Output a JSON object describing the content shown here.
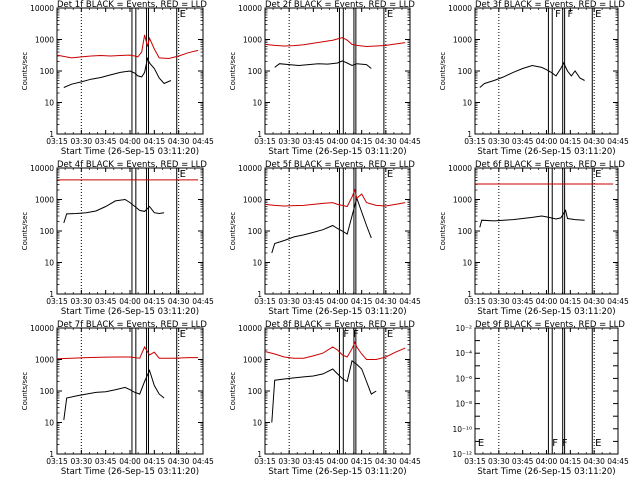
{
  "chart_data": [
    {
      "type": "line",
      "title": "Det 1f BLACK = Events, RED = LLD",
      "xlabel": "Start Time (26-Sep-15 03:11:20)",
      "ylabel": "Counts/sec",
      "x_tick_labels": [
        "03:15",
        "03:30",
        "03:45",
        "04:00",
        "04:15",
        "04:30",
        "04:45"
      ],
      "xlim": [
        3.25,
        4.75
      ],
      "ylim": [
        1,
        10000
      ],
      "y_scale": "log",
      "y_tick_labels": [
        "1",
        "10",
        "100",
        "1000",
        "10000"
      ],
      "dotted_vlines": [
        3.5,
        4.5
      ],
      "solid_vlines": [
        4.02,
        4.06,
        4.17,
        4.19,
        4.48
      ],
      "flag_letters": [
        {
          "x": 4.5,
          "text": "E"
        }
      ],
      "series": [
        {
          "color": "#000000",
          "x": [
            3.32,
            3.4,
            3.5,
            3.6,
            3.7,
            3.8,
            3.9,
            4.0,
            4.05,
            4.08,
            4.12,
            4.15,
            4.18,
            4.2,
            4.25,
            4.3,
            4.35,
            4.42
          ],
          "y": [
            30,
            38,
            45,
            55,
            62,
            75,
            90,
            100,
            85,
            70,
            65,
            90,
            250,
            180,
            120,
            60,
            40,
            50
          ]
        },
        {
          "color": "#cc0000",
          "x": [
            3.25,
            3.4,
            3.5,
            3.6,
            3.7,
            3.8,
            3.9,
            4.0,
            4.05,
            4.08,
            4.12,
            4.15,
            4.18,
            4.2,
            4.25,
            4.3,
            4.4,
            4.5,
            4.6,
            4.7
          ],
          "y": [
            320,
            260,
            280,
            300,
            310,
            300,
            310,
            320,
            300,
            280,
            400,
            1400,
            600,
            1100,
            500,
            260,
            250,
            300,
            380,
            450
          ]
        }
      ]
    },
    {
      "type": "line",
      "title": "Det 2f BLACK = Events, RED = LLD",
      "xlabel": "Start Time (26-Sep-15 03:11:20)",
      "ylabel": "Counts/sec",
      "x_tick_labels": [
        "03:15",
        "03:30",
        "03:45",
        "04:00",
        "04:15",
        "04:30",
        "04:45"
      ],
      "xlim": [
        3.25,
        4.75
      ],
      "ylim": [
        1,
        10000
      ],
      "y_scale": "log",
      "y_tick_labels": [
        "1",
        "10",
        "100",
        "1000",
        "10000"
      ],
      "dotted_vlines": [
        3.5,
        4.5
      ],
      "solid_vlines": [
        4.02,
        4.06,
        4.17,
        4.19,
        4.48
      ],
      "flag_letters": [
        {
          "x": 4.5,
          "text": "E"
        }
      ],
      "series": [
        {
          "color": "#000000",
          "x": [
            3.35,
            3.4,
            3.5,
            3.6,
            3.7,
            3.8,
            3.9,
            4.0,
            4.05,
            4.1,
            4.15,
            4.2,
            4.3,
            4.35
          ],
          "y": [
            130,
            170,
            160,
            150,
            160,
            170,
            165,
            180,
            210,
            180,
            150,
            170,
            160,
            120
          ]
        },
        {
          "color": "#cc0000",
          "x": [
            3.25,
            3.35,
            3.45,
            3.55,
            3.65,
            3.75,
            3.85,
            3.95,
            4.05,
            4.1,
            4.15,
            4.2,
            4.3,
            4.4,
            4.5,
            4.6,
            4.7
          ],
          "y": [
            700,
            650,
            620,
            640,
            680,
            760,
            850,
            950,
            1150,
            950,
            700,
            650,
            600,
            620,
            650,
            720,
            800
          ]
        }
      ]
    },
    {
      "type": "line",
      "title": "Det 3f BLACK = Events, RED = LLD",
      "xlabel": "Start Time (26-Sep-15 03:11:20)",
      "ylabel": "Counts/sec",
      "x_tick_labels": [
        "03:15",
        "03:30",
        "03:45",
        "04:00",
        "04:15",
        "04:30",
        "04:45"
      ],
      "xlim": [
        3.25,
        4.75
      ],
      "ylim": [
        1,
        10000
      ],
      "y_scale": "log",
      "y_tick_labels": [
        "1",
        "10",
        "100",
        "1000",
        "10000"
      ],
      "dotted_vlines": [
        3.5,
        4.5
      ],
      "solid_vlines": [
        4.02,
        4.06,
        4.17,
        4.19,
        4.48
      ],
      "flag_letters": [
        {
          "x": 4.08,
          "text": "F"
        },
        {
          "x": 4.21,
          "text": "F"
        },
        {
          "x": 4.5,
          "text": "E"
        }
      ],
      "series": [
        {
          "color": "#000000",
          "x": [
            3.3,
            3.35,
            3.45,
            3.55,
            3.65,
            3.75,
            3.85,
            3.95,
            4.0,
            4.05,
            4.1,
            4.15,
            4.18,
            4.22,
            4.26,
            4.3,
            4.35,
            4.4
          ],
          "y": [
            30,
            40,
            50,
            65,
            90,
            120,
            150,
            130,
            110,
            90,
            70,
            120,
            180,
            100,
            70,
            100,
            60,
            50
          ]
        }
      ]
    },
    {
      "type": "line",
      "title": "Det 4f BLACK = Events, RED = LLD",
      "xlabel": "Start Time (26-Sep-15 03:11:20)",
      "ylabel": "Counts/sec",
      "x_tick_labels": [
        "03:15",
        "03:30",
        "03:45",
        "04:00",
        "04:15",
        "04:30",
        "04:45"
      ],
      "xlim": [
        3.25,
        4.75
      ],
      "ylim": [
        1,
        10000
      ],
      "y_scale": "log",
      "y_tick_labels": [
        "1",
        "10",
        "100",
        "1000",
        "10000"
      ],
      "dotted_vlines": [
        3.5,
        4.5
      ],
      "solid_vlines": [
        4.02,
        4.06,
        4.17,
        4.19,
        4.48
      ],
      "flag_letters": [
        {
          "x": 4.5,
          "text": "E"
        }
      ],
      "series": [
        {
          "color": "#000000",
          "x": [
            3.32,
            3.35,
            3.45,
            3.55,
            3.65,
            3.75,
            3.85,
            3.95,
            4.0,
            4.05,
            4.1,
            4.15,
            4.2,
            4.25,
            4.3,
            4.35
          ],
          "y": [
            180,
            350,
            360,
            380,
            430,
            600,
            900,
            1000,
            800,
            600,
            450,
            420,
            600,
            380,
            360,
            380
          ]
        },
        {
          "color": "#cc0000",
          "x": [
            3.25,
            3.5,
            3.75,
            4.0,
            4.25,
            4.5,
            4.7
          ],
          "y": [
            4200,
            4200,
            4200,
            4200,
            4200,
            4200,
            4200
          ]
        }
      ]
    },
    {
      "type": "line",
      "title": "Det 5f BLACK = Events, RED = LLD",
      "xlabel": "Start Time (26-Sep-15 03:11:20)",
      "ylabel": "Counts/sec",
      "x_tick_labels": [
        "03:15",
        "03:30",
        "03:45",
        "04:00",
        "04:15",
        "04:30",
        "04:45"
      ],
      "xlim": [
        3.25,
        4.75
      ],
      "ylim": [
        1,
        10000
      ],
      "y_scale": "log",
      "y_tick_labels": [
        "1",
        "10",
        "100",
        "1000",
        "10000"
      ],
      "dotted_vlines": [
        3.5,
        4.5
      ],
      "solid_vlines": [
        4.02,
        4.06,
        4.17,
        4.19,
        4.48
      ],
      "flag_letters": [
        {
          "x": 4.5,
          "text": "E"
        }
      ],
      "series": [
        {
          "color": "#000000",
          "x": [
            3.32,
            3.35,
            3.45,
            3.55,
            3.65,
            3.75,
            3.85,
            3.95,
            4.0,
            4.05,
            4.1,
            4.15,
            4.2,
            4.25,
            4.3,
            4.35
          ],
          "y": [
            20,
            40,
            50,
            65,
            75,
            90,
            110,
            150,
            120,
            100,
            80,
            300,
            1100,
            400,
            150,
            60
          ]
        },
        {
          "color": "#cc0000",
          "x": [
            3.25,
            3.35,
            3.45,
            3.55,
            3.65,
            3.75,
            3.85,
            3.95,
            4.0,
            4.05,
            4.1,
            4.15,
            4.18,
            4.2,
            4.25,
            4.3,
            4.4,
            4.5,
            4.6,
            4.7
          ],
          "y": [
            700,
            650,
            620,
            640,
            650,
            700,
            750,
            800,
            700,
            650,
            600,
            1200,
            2000,
            1100,
            1500,
            800,
            650,
            620,
            700,
            800
          ]
        }
      ]
    },
    {
      "type": "line",
      "title": "Det 6f BLACK = Events, RED = LLD",
      "xlabel": "Start Time (26-Sep-15 03:11:20)",
      "ylabel": "Counts/sec",
      "x_tick_labels": [
        "03:15",
        "03:30",
        "03:45",
        "04:00",
        "04:15",
        "04:30",
        "04:45"
      ],
      "xlim": [
        3.25,
        4.75
      ],
      "ylim": [
        1,
        10000
      ],
      "y_scale": "log",
      "y_tick_labels": [
        "1",
        "10",
        "100",
        "1000",
        "10000"
      ],
      "dotted_vlines": [
        3.5,
        4.5
      ],
      "solid_vlines": [
        4.02,
        4.06,
        4.17,
        4.19,
        4.48
      ],
      "flag_letters": [
        {
          "x": 4.5,
          "text": "E"
        }
      ],
      "series": [
        {
          "color": "#000000",
          "x": [
            3.3,
            3.32,
            3.45,
            3.55,
            3.65,
            3.75,
            3.85,
            3.95,
            4.0,
            4.05,
            4.1,
            4.15,
            4.2,
            4.22,
            4.3,
            4.4
          ],
          "y": [
            130,
            220,
            210,
            220,
            230,
            250,
            270,
            300,
            280,
            260,
            240,
            260,
            450,
            250,
            230,
            220
          ]
        },
        {
          "color": "#cc0000",
          "x": [
            3.25,
            3.5,
            3.75,
            4.0,
            4.25,
            4.5,
            4.7
          ],
          "y": [
            3100,
            3100,
            3100,
            3100,
            3100,
            3100,
            3100
          ]
        }
      ]
    },
    {
      "type": "line",
      "title": "Det 7f BLACK = Events, RED = LLD",
      "xlabel": "Start Time (26-Sep-15 03:11:20)",
      "ylabel": "Counts/sec",
      "x_tick_labels": [
        "03:15",
        "03:30",
        "03:45",
        "04:00",
        "04:15",
        "04:30",
        "04:45"
      ],
      "xlim": [
        3.25,
        4.75
      ],
      "ylim": [
        1,
        10000
      ],
      "y_scale": "log",
      "y_tick_labels": [
        "1",
        "10",
        "100",
        "1000",
        "10000"
      ],
      "dotted_vlines": [
        3.5,
        4.5
      ],
      "solid_vlines": [
        4.02,
        4.06,
        4.17,
        4.19,
        4.48
      ],
      "flag_letters": [
        {
          "x": 4.5,
          "text": "E"
        }
      ],
      "series": [
        {
          "color": "#000000",
          "x": [
            3.32,
            3.35,
            3.45,
            3.55,
            3.65,
            3.75,
            3.85,
            3.95,
            4.0,
            4.05,
            4.1,
            4.15,
            4.2,
            4.25,
            4.3,
            4.35
          ],
          "y": [
            12,
            60,
            70,
            80,
            90,
            95,
            110,
            130,
            110,
            90,
            80,
            200,
            450,
            150,
            80,
            60
          ]
        },
        {
          "color": "#cc0000",
          "x": [
            3.25,
            3.4,
            3.55,
            3.7,
            3.85,
            4.0,
            4.05,
            4.1,
            4.15,
            4.2,
            4.25,
            4.3,
            4.45,
            4.6,
            4.7
          ],
          "y": [
            1050,
            1100,
            1150,
            1180,
            1200,
            1200,
            1150,
            1100,
            2500,
            1400,
            1700,
            1100,
            1100,
            1150,
            1150
          ]
        }
      ]
    },
    {
      "type": "line",
      "title": "Det 8f BLACK = Events, RED = LLD",
      "xlabel": "Start Time (26-Sep-15 03:11:20)",
      "ylabel": "Counts/sec",
      "x_tick_labels": [
        "03:15",
        "03:30",
        "03:45",
        "04:00",
        "04:15",
        "04:30",
        "04:45"
      ],
      "xlim": [
        3.25,
        4.75
      ],
      "ylim": [
        1,
        10000
      ],
      "y_scale": "log",
      "y_tick_labels": [
        "1",
        "10",
        "100",
        "1000",
        "10000"
      ],
      "dotted_vlines": [
        3.5,
        4.5
      ],
      "solid_vlines": [
        4.02,
        4.06,
        4.17,
        4.19,
        4.48
      ],
      "flag_letters": [
        {
          "x": 4.05,
          "text": "F"
        },
        {
          "x": 4.15,
          "text": "F"
        },
        {
          "x": 4.5,
          "text": "E"
        }
      ],
      "series": [
        {
          "color": "#000000",
          "x": [
            3.32,
            3.35,
            3.45,
            3.55,
            3.65,
            3.75,
            3.85,
            3.95,
            4.0,
            4.05,
            4.1,
            4.15,
            4.2,
            4.25,
            4.3,
            4.35,
            4.4
          ],
          "y": [
            10,
            220,
            240,
            260,
            280,
            300,
            350,
            500,
            350,
            250,
            200,
            900,
            700,
            500,
            200,
            80,
            100
          ]
        },
        {
          "color": "#cc0000",
          "x": [
            3.25,
            3.35,
            3.45,
            3.55,
            3.65,
            3.75,
            3.85,
            3.95,
            4.0,
            4.05,
            4.1,
            4.15,
            4.18,
            4.2,
            4.25,
            4.3,
            4.4,
            4.5,
            4.6,
            4.7
          ],
          "y": [
            1800,
            1500,
            1200,
            1100,
            1100,
            1300,
            1600,
            2500,
            2000,
            1400,
            1200,
            2200,
            3500,
            2500,
            1500,
            1000,
            1000,
            1200,
            1700,
            2300
          ]
        }
      ]
    },
    {
      "type": "line",
      "title": "Det 9f BLACK = Events, RED = LLD",
      "xlabel": "Start Time (26-Sep-15 03:11:20)",
      "ylabel": "",
      "x_tick_labels": [
        "03:15",
        "03:30",
        "03:45",
        "04:00",
        "04:15",
        "04:30",
        "04:45"
      ],
      "xlim": [
        3.25,
        4.75
      ],
      "ylim": [
        1e-12,
        0.01
      ],
      "y_scale": "log",
      "y_tick_labels": [
        "10⁻¹²",
        "10⁻¹⁰",
        "10⁻⁸",
        "10⁻⁶",
        "10⁻⁴",
        "10⁻²"
      ],
      "dotted_vlines": [
        3.5,
        4.5
      ],
      "solid_vlines": [
        4.02,
        4.06,
        4.17,
        4.19,
        4.48
      ],
      "flag_letters": [
        {
          "x": 3.27,
          "text": "E"
        },
        {
          "x": 4.05,
          "text": "F"
        },
        {
          "x": 4.15,
          "text": "F"
        },
        {
          "x": 4.5,
          "text": "E"
        }
      ],
      "series": []
    }
  ]
}
